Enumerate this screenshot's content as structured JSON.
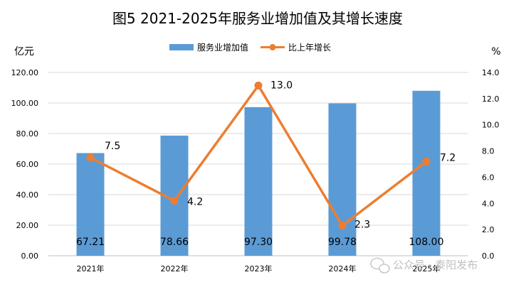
{
  "chart_data": {
    "type": "bar+line",
    "title": "图5  2021-2025年服务业增加值及其增长速度",
    "categories": [
      "2021年",
      "2022年",
      "2023年",
      "2024年",
      "2025年"
    ],
    "series": [
      {
        "name": "服务业增加值",
        "type": "bar",
        "axis": "left",
        "color": "#5B9BD5",
        "values": [
          67.21,
          78.66,
          97.3,
          99.78,
          108.0
        ],
        "labels": [
          "67.21",
          "78.66",
          "97.30",
          "99.78",
          "108.00"
        ]
      },
      {
        "name": "比上年增长",
        "type": "line",
        "axis": "right",
        "color": "#ED7D31",
        "values": [
          7.5,
          4.2,
          13.0,
          2.3,
          7.2
        ],
        "labels": [
          "7.5",
          "4.2",
          "13.0",
          "2.3",
          "7.2"
        ]
      }
    ],
    "y_left": {
      "label": "亿元",
      "range": [
        0,
        120
      ],
      "ticks": [
        "0.00",
        "20.00",
        "40.00",
        "60.00",
        "80.00",
        "100.00",
        "120.00"
      ]
    },
    "y_right": {
      "label": "%",
      "range": [
        0,
        14
      ],
      "ticks": [
        "0.0",
        "2.0",
        "4.0",
        "6.0",
        "8.0",
        "10.0",
        "12.0",
        "14.0"
      ]
    },
    "grid": true,
    "legend_position": "top-center"
  },
  "watermark": {
    "text": "公众号 · 泰阳发布"
  }
}
